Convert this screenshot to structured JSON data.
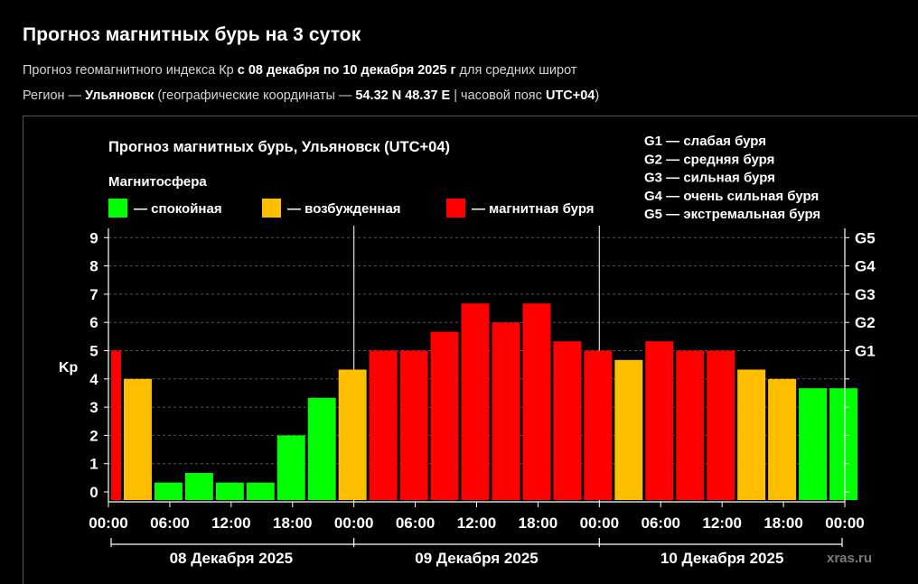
{
  "header": {
    "title": "Прогноз магнитных бурь на 3 суток",
    "line1": {
      "a": "Прогноз геомагнитного индекса Кр ",
      "b": "с 08 декабря по 10 декабря 2025 г",
      "c": " для средних широт"
    },
    "line2": {
      "a": "Регион — ",
      "b": "Ульяновск",
      "c": " (географические координаты — ",
      "d": "54.32 N 48.37 E",
      "e": " | часовой пояс ",
      "f": "UTC+04",
      "g": ")"
    }
  },
  "chart_data": {
    "type": "bar",
    "title": "Прогноз магнитных бурь, Ульяновск (UTC+04)",
    "ylabel": "Kp",
    "ylim": [
      0,
      9
    ],
    "y_ticks": [
      "0",
      "1",
      "2",
      "3",
      "4",
      "5",
      "6",
      "7",
      "8",
      "9"
    ],
    "right_ticks": [
      {
        "value": 5,
        "label": "G1"
      },
      {
        "value": 6,
        "label": "G2"
      },
      {
        "value": 7,
        "label": "G3"
      },
      {
        "value": 8,
        "label": "G4"
      },
      {
        "value": 9,
        "label": "G5"
      }
    ],
    "x_tick_labels": [
      "00:00",
      "06:00",
      "12:00",
      "18:00",
      "00:00",
      "06:00",
      "12:00",
      "18:00",
      "00:00",
      "06:00",
      "12:00",
      "18:00",
      "00:00"
    ],
    "days": [
      "08 Декабря 2025",
      "09 Декабря 2025",
      "10 Декабря 2025"
    ],
    "legend_title": "Магнитосфера",
    "legend": [
      {
        "label": "— спокойная",
        "color": "#00ff00"
      },
      {
        "label": "— возбужденная",
        "color": "#ffbf00"
      },
      {
        "label": "— магнитная буря",
        "color": "#ff0000"
      }
    ],
    "storm_scale": [
      "G1 — слабая буря",
      "G2 — средняя буря",
      "G3 — сильная буря",
      "G4 — очень сильная буря",
      "G5 — экстремальная буря"
    ],
    "bars": [
      {
        "kp": 5.0,
        "color": "#ff0000",
        "partial": true
      },
      {
        "kp": 4.0,
        "color": "#ffbf00"
      },
      {
        "kp": 0.33,
        "color": "#00ff00"
      },
      {
        "kp": 0.67,
        "color": "#00ff00"
      },
      {
        "kp": 0.33,
        "color": "#00ff00"
      },
      {
        "kp": 0.33,
        "color": "#00ff00"
      },
      {
        "kp": 2.0,
        "color": "#00ff00"
      },
      {
        "kp": 3.33,
        "color": "#00ff00"
      },
      {
        "kp": 4.33,
        "color": "#ffbf00"
      },
      {
        "kp": 5.0,
        "color": "#ff0000"
      },
      {
        "kp": 5.0,
        "color": "#ff0000"
      },
      {
        "kp": 5.67,
        "color": "#ff0000"
      },
      {
        "kp": 6.67,
        "color": "#ff0000"
      },
      {
        "kp": 6.0,
        "color": "#ff0000"
      },
      {
        "kp": 6.67,
        "color": "#ff0000"
      },
      {
        "kp": 5.33,
        "color": "#ff0000"
      },
      {
        "kp": 5.0,
        "color": "#ff0000"
      },
      {
        "kp": 4.67,
        "color": "#ffbf00"
      },
      {
        "kp": 5.33,
        "color": "#ff0000"
      },
      {
        "kp": 5.0,
        "color": "#ff0000"
      },
      {
        "kp": 5.0,
        "color": "#ff0000"
      },
      {
        "kp": 4.33,
        "color": "#ffbf00"
      },
      {
        "kp": 4.0,
        "color": "#ffbf00"
      },
      {
        "kp": 3.67,
        "color": "#00ff00"
      },
      {
        "kp": 3.67,
        "color": "#00ff00"
      }
    ],
    "grid": true
  },
  "watermark": "xras.ru"
}
